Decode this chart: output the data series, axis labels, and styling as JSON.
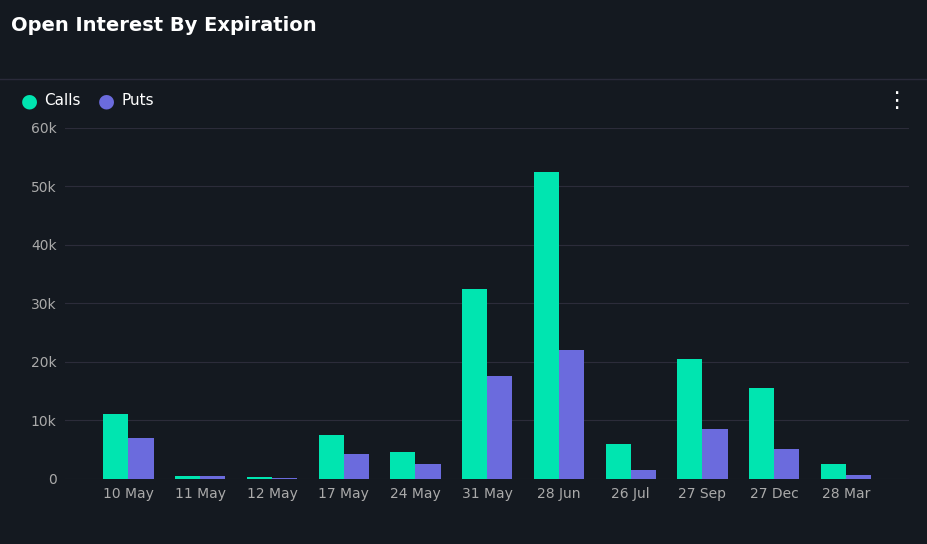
{
  "categories": [
    "10 May",
    "11 May",
    "12 May",
    "17 May",
    "24 May",
    "31 May",
    "28 Jun",
    "26 Jul",
    "27 Sep",
    "27 Dec",
    "28 Mar"
  ],
  "calls": [
    11000,
    500,
    300,
    7500,
    4500,
    32500,
    52500,
    6000,
    20500,
    15500,
    2500
  ],
  "puts": [
    7000,
    400,
    200,
    4200,
    2500,
    17500,
    22000,
    1500,
    8500,
    5000,
    700
  ],
  "calls_color": "#00e5b0",
  "puts_color": "#6b6bdd",
  "background_color": "#141920",
  "plot_background": "#141920",
  "grid_color": "#2c2c3a",
  "text_color": "#ffffff",
  "tick_label_color": "#aaaaaa",
  "title": "Open Interest By Expiration",
  "title_fontsize": 14,
  "legend_calls": "Calls",
  "legend_puts": "Puts",
  "ylim": [
    0,
    60000
  ],
  "yticks": [
    0,
    10000,
    20000,
    30000,
    40000,
    50000,
    60000
  ],
  "ytick_labels": [
    "0",
    "10k",
    "20k",
    "30k",
    "40k",
    "50k",
    "60k"
  ],
  "bar_width": 0.35
}
